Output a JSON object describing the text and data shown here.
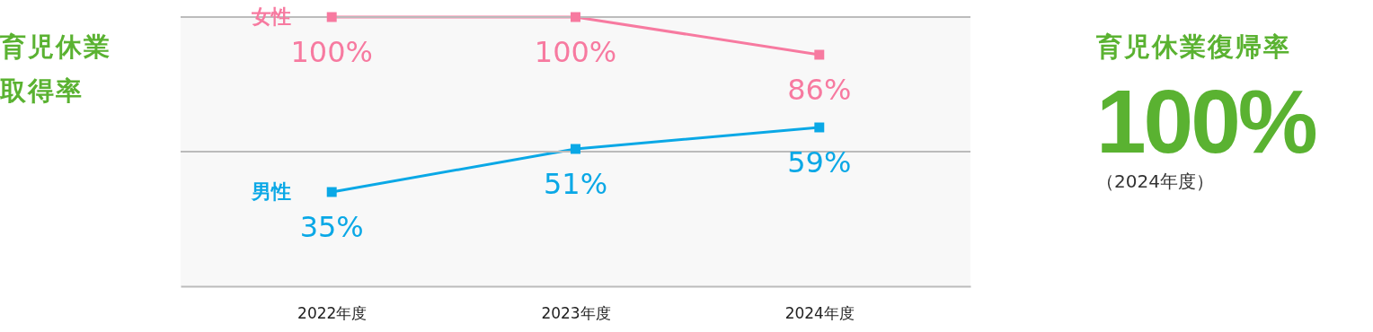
{
  "chart_data": [
    {
      "type": "line",
      "title": "育児休業取得率",
      "categories": [
        "2022年度",
        "2023年度",
        "2024年度"
      ],
      "series": [
        {
          "name": "女性",
          "color": "#f77aa0",
          "values": [
            100,
            100,
            86
          ],
          "value_labels": [
            "100%",
            "100%",
            "86%"
          ]
        },
        {
          "name": "男性",
          "color": "#0aa8e6",
          "values": [
            35,
            51,
            59
          ],
          "value_labels": [
            "35%",
            "51%",
            "59%"
          ]
        }
      ],
      "ref_lines": [
        {
          "axis": "y",
          "value": 50,
          "color": "#bbbbbb"
        },
        {
          "axis": "y",
          "value": 100,
          "color": "#bbbbbb"
        }
      ],
      "tick_labels": "x",
      "legend": false,
      "marker": "square",
      "line_style": "solid"
    },
    {
      "type": "other",
      "title": "育児休業復帰率",
      "annotations": [
        "100%",
        "（2024年度）"
      ]
    }
  ]
}
